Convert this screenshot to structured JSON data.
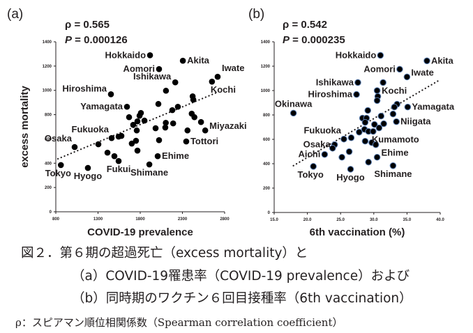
{
  "figure": {
    "caption_line1": "図２．第６期の超過死亡（excess mortality）と",
    "caption_line2": "（a）COVID-19罹患率（COVID-19 prevalence）および",
    "caption_line3": "（b）同時期のワクチン６回目接種率（6th vaccination）",
    "caption_note": "ρ：スピアマン順位相関係数（Spearman correlation coefficient）"
  },
  "chart_data": [
    {
      "type": "scatter",
      "panel_label": "(a)",
      "stat_rho": "ρ = 0.565",
      "stat_p_label": "P",
      "stat_p_value": " = 0.000126",
      "title": "",
      "xlabel": "COVID-19 prevalence",
      "ylabel": "excess mortality",
      "xlim": [
        800,
        2800
      ],
      "ylim": [
        0,
        1400
      ],
      "xticks": [
        800,
        1300,
        1800,
        2300,
        2800
      ],
      "xtick_labels": [
        "800",
        "1300",
        "1800",
        "2300",
        "2800"
      ],
      "yticks": [
        0,
        200,
        400,
        600,
        800,
        1000,
        1200,
        1400
      ],
      "ytick_labels": [
        "0",
        "200",
        "400",
        "600",
        "800",
        "1000",
        "1200",
        "1400"
      ],
      "grid": false,
      "marker_color": "#000000",
      "marker_edge": "#000000",
      "trendline": {
        "style": "dotted",
        "x": [
          825,
          2700
        ],
        "y": [
          436,
          980
        ]
      },
      "points": [
        {
          "x": 860,
          "y": 385,
          "label": "Tokyo",
          "label_pos": "below-left"
        },
        {
          "x": 1023,
          "y": 533,
          "label": "Osaka",
          "label_pos": "above-left"
        },
        {
          "x": 1180,
          "y": 361,
          "label": "Hyogo",
          "label_pos": "below"
        },
        {
          "x": 1304,
          "y": 556,
          "label": ""
        },
        {
          "x": 1461,
          "y": 607,
          "label": "Fukuoka",
          "label_pos": "above-left"
        },
        {
          "x": 1412,
          "y": 487,
          "label": ""
        },
        {
          "x": 1494,
          "y": 458,
          "label": ""
        },
        {
          "x": 1544,
          "y": 418,
          "label": "Fukui",
          "label_pos": "below"
        },
        {
          "x": 1544,
          "y": 619,
          "label": ""
        },
        {
          "x": 1577,
          "y": 625,
          "label": ""
        },
        {
          "x": 1668,
          "y": 779,
          "label": ""
        },
        {
          "x": 1700,
          "y": 562,
          "label": ""
        },
        {
          "x": 1717,
          "y": 716,
          "label": ""
        },
        {
          "x": 1750,
          "y": 585,
          "label": ""
        },
        {
          "x": 1759,
          "y": 670,
          "label": ""
        },
        {
          "x": 1767,
          "y": 745,
          "label": ""
        },
        {
          "x": 1767,
          "y": 504,
          "label": ""
        },
        {
          "x": 1792,
          "y": 791,
          "label": ""
        },
        {
          "x": 1808,
          "y": 814,
          "label": ""
        },
        {
          "x": 1850,
          "y": 751,
          "label": ""
        },
        {
          "x": 1908,
          "y": 390,
          "label": "Shimane",
          "label_pos": "below"
        },
        {
          "x": 1982,
          "y": 688,
          "label": ""
        },
        {
          "x": 2007,
          "y": 458,
          "label": "Ehime",
          "label_pos": "right"
        },
        {
          "x": 2023,
          "y": 590,
          "label": ""
        },
        {
          "x": 2103,
          "y": 733,
          "label": ""
        },
        {
          "x": 2097,
          "y": 694,
          "label": ""
        },
        {
          "x": 2190,
          "y": 728,
          "label": ""
        },
        {
          "x": 2345,
          "y": 579,
          "label": "Tottori",
          "label_pos": "right"
        },
        {
          "x": 2360,
          "y": 670,
          "label": ""
        },
        {
          "x": 2410,
          "y": 808,
          "label": ""
        },
        {
          "x": 2442,
          "y": 779,
          "label": ""
        },
        {
          "x": 2520,
          "y": 739,
          "label": ""
        },
        {
          "x": 2570,
          "y": 670,
          "label": "Miyazaki",
          "label_pos": "right-up"
        },
        {
          "x": 1916,
          "y": 1289,
          "label": "Hokkaido",
          "label_pos": "left"
        },
        {
          "x": 2023,
          "y": 1175,
          "label": "Aomori",
          "label_pos": "left"
        },
        {
          "x": 2305,
          "y": 1244,
          "label": "Akita",
          "label_pos": "right"
        },
        {
          "x": 2215,
          "y": 1066,
          "label": "Ishikawa",
          "label_pos": "left-up"
        },
        {
          "x": 2105,
          "y": 997,
          "label": ""
        },
        {
          "x": 1453,
          "y": 968,
          "label": "Hiroshima",
          "label_pos": "left-up"
        },
        {
          "x": 1643,
          "y": 865,
          "label": "Yamagata",
          "label_pos": "left"
        },
        {
          "x": 2015,
          "y": 888,
          "label": ""
        },
        {
          "x": 2180,
          "y": 837,
          "label": ""
        },
        {
          "x": 2246,
          "y": 865,
          "label": ""
        },
        {
          "x": 2421,
          "y": 951,
          "label": ""
        },
        {
          "x": 2429,
          "y": 923,
          "label": ""
        },
        {
          "x": 2717,
          "y": 1112,
          "label": "Iwate",
          "label_pos": "above-right"
        },
        {
          "x": 2650,
          "y": 1072,
          "label": "Kochi",
          "label_pos": "below-right"
        }
      ]
    },
    {
      "type": "scatter",
      "panel_label": "(b)",
      "stat_rho": "ρ = 0.542",
      "stat_p_label": "P",
      "stat_p_value": " = 0.000235",
      "title": "",
      "xlabel": "6th vaccination (%)",
      "ylabel": "",
      "xlim": [
        15.0,
        40.0
      ],
      "ylim": [
        0,
        1400
      ],
      "xticks": [
        15,
        20,
        25,
        30,
        35,
        40
      ],
      "xtick_labels": [
        "15.0",
        "20.0",
        "25.0",
        "30.0",
        "35.0",
        "40.0"
      ],
      "yticks": [
        0,
        200,
        400,
        600,
        800,
        1000,
        1200,
        1400
      ],
      "ytick_labels": [
        "0",
        "200",
        "400",
        "600",
        "800",
        "1000",
        "1200",
        "1400"
      ],
      "grid": false,
      "marker_color": "#000000",
      "marker_edge": "#5b7fb3",
      "trendline": {
        "style": "dotted",
        "x": [
          17.9,
          39.8
        ],
        "y": [
          384,
          1083
        ]
      },
      "points": [
        {
          "x": 31.0,
          "y": 1289,
          "label": "Hokkaido",
          "label_pos": "left"
        },
        {
          "x": 38.0,
          "y": 1244,
          "label": "Akita",
          "label_pos": "right"
        },
        {
          "x": 33.9,
          "y": 1175,
          "label": "Aomori",
          "label_pos": "left"
        },
        {
          "x": 35.0,
          "y": 1112,
          "label": "Iwate",
          "label_pos": "right-up"
        },
        {
          "x": 27.6,
          "y": 1066,
          "label": "Ishikawa",
          "label_pos": "left"
        },
        {
          "x": 31.4,
          "y": 1066,
          "label": "Kochi",
          "label_pos": "below-right"
        },
        {
          "x": 30.5,
          "y": 1000,
          "label": ""
        },
        {
          "x": 30.6,
          "y": 952,
          "label": ""
        },
        {
          "x": 30.5,
          "y": 918,
          "label": ""
        },
        {
          "x": 27.4,
          "y": 968,
          "label": "Hiroshima",
          "label_pos": "left"
        },
        {
          "x": 17.9,
          "y": 815,
          "label": "Okinawa",
          "label_pos": "above"
        },
        {
          "x": 35.1,
          "y": 865,
          "label": "Yamagata",
          "label_pos": "right"
        },
        {
          "x": 33.5,
          "y": 888,
          "label": ""
        },
        {
          "x": 33.1,
          "y": 865,
          "label": ""
        },
        {
          "x": 29.1,
          "y": 837,
          "label": ""
        },
        {
          "x": 31.1,
          "y": 791,
          "label": ""
        },
        {
          "x": 28.3,
          "y": 774,
          "label": ""
        },
        {
          "x": 28.9,
          "y": 774,
          "label": ""
        },
        {
          "x": 32.9,
          "y": 808,
          "label": ""
        },
        {
          "x": 33.4,
          "y": 745,
          "label": "Niigata",
          "label_pos": "right"
        },
        {
          "x": 28.7,
          "y": 739,
          "label": ""
        },
        {
          "x": 30.1,
          "y": 722,
          "label": ""
        },
        {
          "x": 31.5,
          "y": 728,
          "label": ""
        },
        {
          "x": 30.8,
          "y": 694,
          "label": ""
        },
        {
          "x": 28.6,
          "y": 682,
          "label": ""
        },
        {
          "x": 27.8,
          "y": 659,
          "label": ""
        },
        {
          "x": 29.2,
          "y": 665,
          "label": ""
        },
        {
          "x": 29.9,
          "y": 665,
          "label": "Kumamoto",
          "label_pos": "below-right"
        },
        {
          "x": 26.6,
          "y": 613,
          "label": ""
        },
        {
          "x": 25.5,
          "y": 602,
          "label": "Fukuoka",
          "label_pos": "above-left"
        },
        {
          "x": 28.7,
          "y": 585,
          "label": ""
        },
        {
          "x": 29.7,
          "y": 573,
          "label": ""
        },
        {
          "x": 30.3,
          "y": 556,
          "label": ""
        },
        {
          "x": 24.1,
          "y": 556,
          "label": "Osaka",
          "label_pos": "left"
        },
        {
          "x": 23.8,
          "y": 527,
          "label": ""
        },
        {
          "x": 22.6,
          "y": 476,
          "label": "Aichi",
          "label_pos": "left"
        },
        {
          "x": 26.3,
          "y": 499,
          "label": ""
        },
        {
          "x": 25.2,
          "y": 453,
          "label": ""
        },
        {
          "x": 30.5,
          "y": 453,
          "label": "Ehime",
          "label_pos": "right-up"
        },
        {
          "x": 29.2,
          "y": 413,
          "label": ""
        },
        {
          "x": 20.9,
          "y": 378,
          "label": "Tokyo",
          "label_pos": "below-left"
        },
        {
          "x": 26.5,
          "y": 355,
          "label": "Hyogo",
          "label_pos": "below"
        },
        {
          "x": 32.9,
          "y": 384,
          "label": "Shimane",
          "label_pos": "below"
        }
      ]
    }
  ]
}
